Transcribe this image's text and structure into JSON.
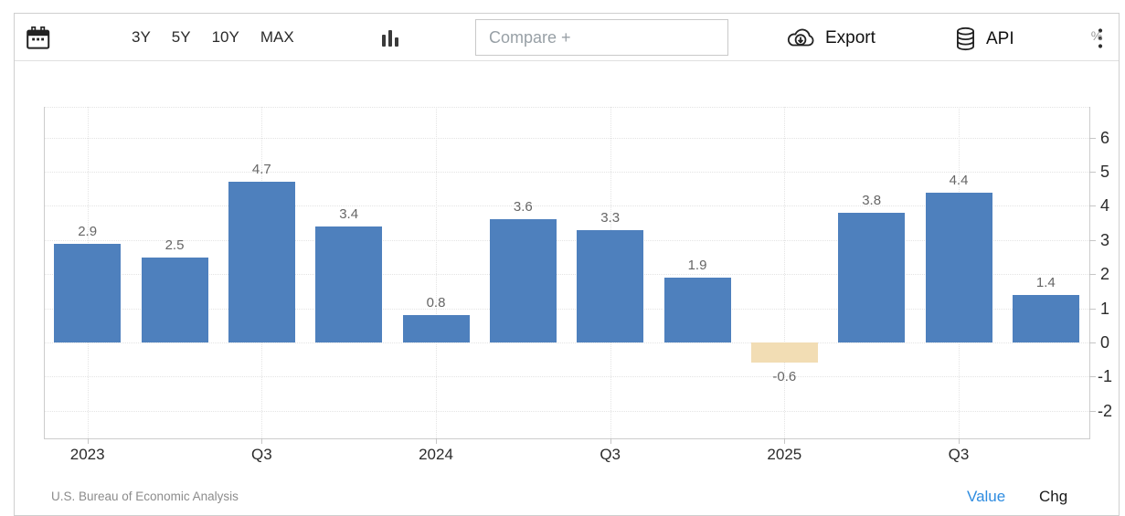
{
  "toolbar": {
    "ranges": [
      "3Y",
      "5Y",
      "10Y",
      "MAX"
    ],
    "compare_placeholder": "Compare +",
    "export_label": "Export",
    "api_label": "API"
  },
  "chart_data": {
    "type": "bar",
    "values": [
      2.9,
      2.5,
      4.7,
      3.4,
      0.8,
      3.6,
      3.3,
      1.9,
      -0.6,
      3.8,
      4.4,
      1.4
    ],
    "x_ticks": [
      {
        "bar_index": 0,
        "label": "2023"
      },
      {
        "bar_index": 2,
        "label": "Q3"
      },
      {
        "bar_index": 4,
        "label": "2024"
      },
      {
        "bar_index": 6,
        "label": "Q3"
      },
      {
        "bar_index": 8,
        "label": "2025"
      },
      {
        "bar_index": 10,
        "label": "Q3"
      }
    ],
    "y_ticks": [
      6,
      5,
      4,
      3,
      2,
      1,
      0,
      -1,
      -2
    ],
    "ylim": [
      -2.8,
      6.9
    ],
    "unit_label": "%",
    "bar_color": "#4e80bd",
    "negative_bar_color": "#f2ddb4",
    "grid": "dotted",
    "title": "",
    "xlabel": "",
    "ylabel": "%"
  },
  "footer": {
    "source": "U.S. Bureau of Economic Analysis",
    "value_label": "Value",
    "chg_label": "Chg",
    "value_color": "#2e8ce0"
  }
}
